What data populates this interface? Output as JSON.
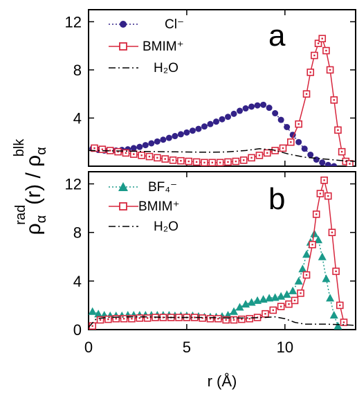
{
  "colors": {
    "cl": "#332288",
    "bmim": "#d7263d",
    "bf4": "#1a9a8a",
    "h2o": "#000000",
    "axis": "#000000"
  },
  "ylabel": {
    "rho": "ρ",
    "alpha": "α",
    "rad": "rad",
    "open": "(r) / ρ",
    "blk": "blk"
  },
  "xlabel": "r (Å)",
  "chart_data": [
    {
      "type": "line",
      "panel_label": "a",
      "xlim": [
        0,
        13.6
      ],
      "ylim": [
        0,
        13
      ],
      "yticks": [
        4,
        8,
        12
      ],
      "xticks": [
        0,
        5,
        10
      ],
      "legend_position": "top-left",
      "series": [
        {
          "name": "Cl⁻",
          "marker": "filled-circle",
          "line": "dotted",
          "x": [
            0.2,
            0.5,
            0.8,
            1.1,
            1.4,
            1.7,
            2.0,
            2.3,
            2.6,
            2.9,
            3.2,
            3.5,
            3.8,
            4.1,
            4.4,
            4.7,
            5.0,
            5.3,
            5.6,
            5.9,
            6.2,
            6.5,
            6.8,
            7.1,
            7.4,
            7.7,
            8.0,
            8.3,
            8.6,
            8.9,
            9.2,
            9.5,
            9.8,
            10.1,
            10.4,
            10.7,
            11.0,
            11.3,
            11.6,
            11.9,
            12.2,
            12.5
          ],
          "y": [
            1.45,
            1.35,
            1.3,
            1.28,
            1.3,
            1.35,
            1.4,
            1.5,
            1.6,
            1.75,
            1.9,
            2.05,
            2.2,
            2.35,
            2.5,
            2.65,
            2.8,
            2.95,
            3.1,
            3.3,
            3.5,
            3.7,
            3.9,
            4.1,
            4.35,
            4.6,
            4.8,
            4.95,
            5.05,
            5.1,
            4.85,
            4.4,
            3.85,
            3.25,
            2.6,
            2.0,
            1.45,
            0.95,
            0.55,
            0.3,
            0.1,
            0.0
          ]
        },
        {
          "name": "BMIM⁺",
          "marker": "open-square",
          "line": "solid",
          "x": [
            0.3,
            0.7,
            1.1,
            1.5,
            1.9,
            2.3,
            2.7,
            3.1,
            3.5,
            3.9,
            4.3,
            4.7,
            5.1,
            5.5,
            5.9,
            6.3,
            6.7,
            7.1,
            7.5,
            7.9,
            8.3,
            8.7,
            9.1,
            9.5,
            9.9,
            10.3,
            10.7,
            11.1,
            11.3,
            11.5,
            11.7,
            11.9,
            12.1,
            12.3,
            12.5,
            12.7,
            12.9,
            13.1,
            13.3
          ],
          "y": [
            1.5,
            1.4,
            1.3,
            1.2,
            1.1,
            1.0,
            0.9,
            0.8,
            0.7,
            0.6,
            0.5,
            0.45,
            0.4,
            0.35,
            0.3,
            0.3,
            0.3,
            0.35,
            0.4,
            0.5,
            0.7,
            0.9,
            1.1,
            1.3,
            1.5,
            2.0,
            3.5,
            6.0,
            7.8,
            9.2,
            10.2,
            10.6,
            9.6,
            8.0,
            5.5,
            3.0,
            1.2,
            0.4,
            0.2
          ]
        },
        {
          "name": "H₂O",
          "marker": "none",
          "line": "dash-dot",
          "x": [
            0.0,
            1.0,
            2.0,
            3.0,
            4.0,
            5.0,
            6.0,
            7.0,
            8.0,
            8.7,
            9.4,
            10.2,
            11.0,
            12.0,
            13.0,
            13.6
          ],
          "y": [
            1.3,
            1.28,
            1.25,
            1.22,
            1.2,
            1.18,
            1.16,
            1.18,
            1.3,
            1.45,
            1.35,
            1.0,
            0.75,
            0.6,
            0.45,
            0.4
          ]
        }
      ]
    },
    {
      "type": "line",
      "panel_label": "b",
      "xlim": [
        0,
        13.6
      ],
      "ylim": [
        0,
        13
      ],
      "yticks": [
        0,
        4,
        8,
        12
      ],
      "xticks": [
        0,
        5,
        10
      ],
      "legend_position": "top-left",
      "series": [
        {
          "name": "BF₄⁻",
          "marker": "filled-triangle",
          "line": "dotted",
          "x": [
            0.2,
            0.5,
            0.8,
            1.1,
            1.4,
            1.7,
            2.0,
            2.3,
            2.6,
            2.9,
            3.2,
            3.5,
            3.8,
            4.1,
            4.4,
            4.7,
            5.0,
            5.3,
            5.6,
            5.9,
            6.2,
            6.5,
            6.8,
            7.1,
            7.4,
            7.7,
            8.0,
            8.3,
            8.6,
            8.9,
            9.2,
            9.5,
            9.8,
            10.1,
            10.4,
            10.7,
            10.9,
            11.1,
            11.3,
            11.5,
            11.7,
            11.9,
            12.1,
            12.3,
            12.5,
            12.7
          ],
          "y": [
            1.5,
            1.3,
            1.2,
            1.15,
            1.15,
            1.15,
            1.2,
            1.2,
            1.2,
            1.2,
            1.2,
            1.2,
            1.2,
            1.2,
            1.15,
            1.15,
            1.15,
            1.15,
            1.1,
            1.05,
            1.05,
            1.05,
            1.1,
            1.2,
            1.5,
            1.85,
            2.1,
            2.25,
            2.4,
            2.5,
            2.6,
            2.65,
            2.75,
            2.9,
            3.2,
            4.0,
            5.0,
            6.2,
            7.2,
            7.9,
            7.4,
            6.0,
            4.2,
            2.6,
            1.2,
            0.3
          ]
        },
        {
          "name": "BMIM⁺",
          "marker": "open-square",
          "line": "solid",
          "x": [
            0.2,
            0.6,
            1.0,
            1.4,
            1.8,
            2.2,
            2.6,
            3.0,
            3.4,
            3.8,
            4.2,
            4.6,
            5.0,
            5.4,
            5.8,
            6.2,
            6.6,
            7.0,
            7.4,
            7.8,
            8.2,
            8.6,
            9.0,
            9.4,
            9.8,
            10.2,
            10.5,
            10.8,
            11.1,
            11.4,
            11.6,
            11.8,
            12.0,
            12.2,
            12.4,
            12.6,
            12.8,
            13.0
          ],
          "y": [
            0.3,
            0.8,
            0.85,
            0.9,
            0.9,
            0.9,
            0.95,
            0.95,
            1.0,
            1.0,
            1.0,
            1.0,
            1.0,
            1.0,
            0.95,
            0.9,
            0.9,
            0.8,
            0.8,
            0.85,
            0.9,
            1.0,
            1.3,
            1.6,
            1.9,
            2.1,
            2.4,
            3.0,
            4.5,
            7.0,
            9.5,
            11.2,
            12.3,
            11.0,
            8.0,
            4.8,
            2.0,
            0.6
          ]
        },
        {
          "name": "H₂O",
          "marker": "none",
          "line": "dash-dot",
          "x": [
            0.0,
            0.4,
            1.0,
            2.0,
            3.0,
            4.0,
            5.0,
            6.0,
            7.0,
            8.0,
            9.0,
            9.5,
            10.0,
            10.5,
            11.0,
            12.0,
            13.0,
            13.6
          ],
          "y": [
            0.2,
            0.9,
            1.0,
            1.05,
            1.05,
            1.0,
            1.0,
            1.0,
            0.95,
            0.95,
            1.0,
            1.05,
            0.9,
            0.6,
            0.45,
            0.45,
            0.4,
            0.35
          ]
        }
      ]
    }
  ]
}
